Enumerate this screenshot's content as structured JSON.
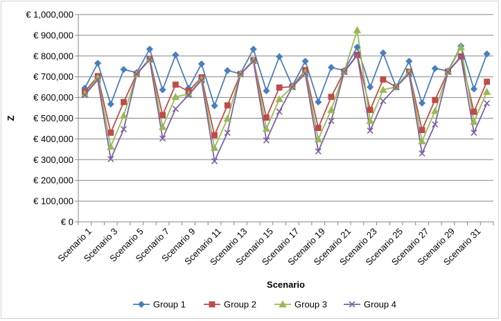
{
  "chart_data": {
    "type": "line",
    "title": "",
    "xlabel": "Scenario",
    "ylabel": "Z",
    "ylim": [
      0,
      1000000
    ],
    "y_tick_step": 100000,
    "y_tick_labels": [
      "€ 0",
      "€ 100,000",
      "€ 200,000",
      "€ 300,000",
      "€ 400,000",
      "€ 500,000",
      "€ 600,000",
      "€ 700,000",
      "€ 800,000",
      "€ 900,000",
      "€ 1,000,000"
    ],
    "grid": true,
    "legend_position": "bottom",
    "categories": [
      "Scenario 1",
      "Scenario 2",
      "Scenario 3",
      "Scenario 4",
      "Scenario 5",
      "Scenario 6",
      "Scenario 7",
      "Scenario 8",
      "Scenario 9",
      "Scenario 10",
      "Scenario 11",
      "Scenario 12",
      "Scenario 13",
      "Scenario 14",
      "Scenario 15",
      "Scenario 16",
      "Scenario 17",
      "Scenario 18",
      "Scenario 19",
      "Scenario 20",
      "Scenario 21",
      "Scenario 22",
      "Scenario 23",
      "Scenario 24",
      "Scenario 25",
      "Scenario 26",
      "Scenario 27",
      "Scenario 28",
      "Scenario 29",
      "Scenario 30",
      "Scenario 31",
      "Scenario 32"
    ],
    "x_tick_labels": [
      "Scenario 1",
      "Scenario 3",
      "Scenario 5",
      "Scenario 7",
      "Scenario 9",
      "Scenario 11",
      "Scenario 13",
      "Scenario 15",
      "Scenario 17",
      "Scenario 19",
      "Scenario 21",
      "Scenario 23",
      "Scenario 25",
      "Scenario 27",
      "Scenario 29",
      "Scenario 31"
    ],
    "series": [
      {
        "name": "Group 1",
        "color": "#4a7ebb",
        "marker": "diamond",
        "values": [
          645000,
          765000,
          568000,
          735000,
          720000,
          833000,
          637000,
          805000,
          645000,
          762000,
          560000,
          730000,
          715000,
          833000,
          632000,
          797000,
          655000,
          775000,
          578000,
          745000,
          730000,
          843000,
          650000,
          815000,
          650000,
          775000,
          573000,
          740000,
          728000,
          848000,
          641000,
          810000
        ]
      },
      {
        "name": "Group 2",
        "color": "#be4b48",
        "marker": "square",
        "values": [
          627000,
          703000,
          430000,
          578000,
          713000,
          787000,
          515000,
          662000,
          630000,
          697000,
          418000,
          562000,
          713000,
          780000,
          503000,
          648000,
          652000,
          732000,
          453000,
          603000,
          725000,
          806000,
          540000,
          687000,
          650000,
          725000,
          443000,
          588000,
          725000,
          798000,
          531000,
          676000
        ]
      },
      {
        "name": "Group 3",
        "color": "#98b954",
        "marker": "triangle",
        "values": [
          618000,
          695000,
          363000,
          512000,
          712000,
          783000,
          458000,
          603000,
          617000,
          687000,
          357000,
          498000,
          712000,
          777000,
          450000,
          592000,
          651000,
          722000,
          398000,
          540000,
          724000,
          925000,
          487000,
          637000,
          651000,
          722000,
          389000,
          535000,
          724000,
          843000,
          483000,
          627000
        ]
      },
      {
        "name": "Group 4",
        "color": "#7d60a0",
        "marker": "x",
        "values": [
          612000,
          685000,
          303000,
          447000,
          712000,
          783000,
          402000,
          545000,
          612000,
          683000,
          293000,
          430000,
          712000,
          775000,
          393000,
          532000,
          650000,
          715000,
          340000,
          487000,
          723000,
          803000,
          440000,
          583000,
          650000,
          715000,
          330000,
          470000,
          723000,
          795000,
          430000,
          572000
        ]
      }
    ]
  }
}
